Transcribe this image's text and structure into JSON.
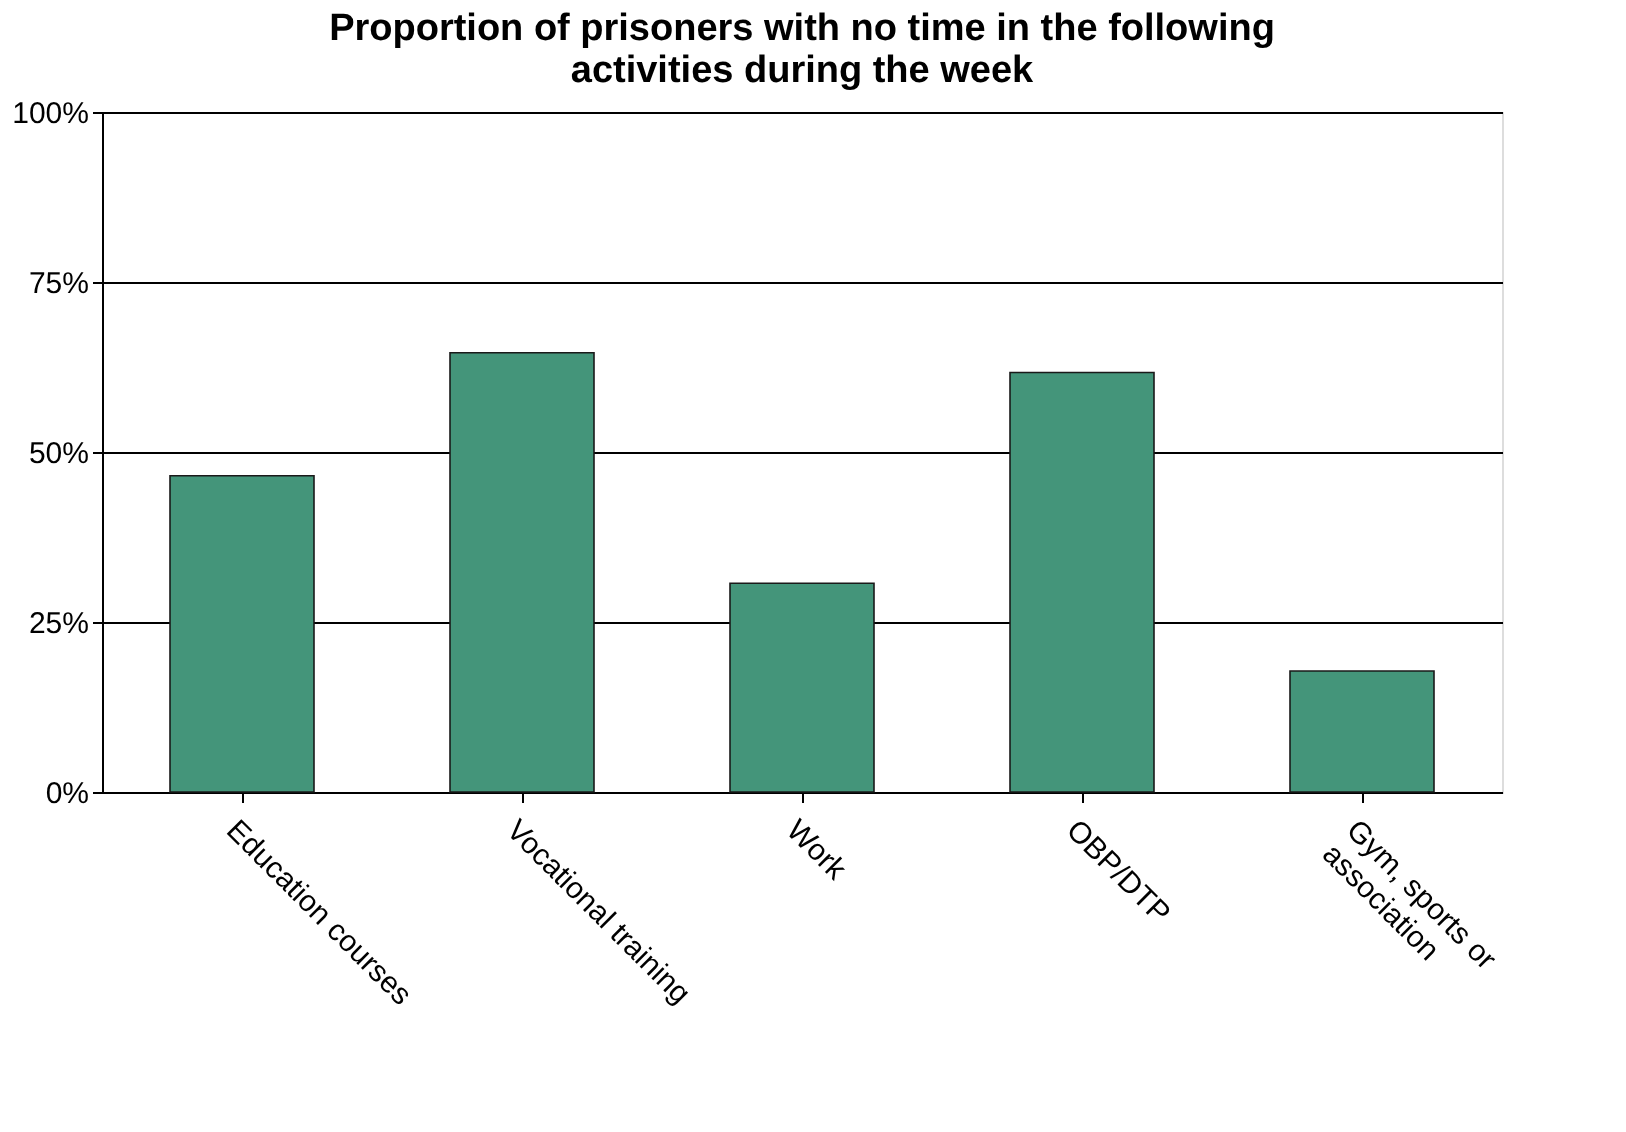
{
  "chart_data": {
    "type": "bar",
    "title": "Proportion of prisoners with no time in the following activities during the week",
    "categories": [
      "Education courses",
      "Vocational training",
      "Work",
      "OBP/DTP",
      "Gym, sports or association"
    ],
    "values": [
      46.5,
      64.6,
      30.7,
      61.7,
      17.8
    ],
    "color": "#44957a",
    "ylim": [
      0,
      100
    ],
    "yticks": [
      {
        "value": 0,
        "label": "0%"
      },
      {
        "value": 25,
        "label": "25%"
      },
      {
        "value": 50,
        "label": "50%"
      },
      {
        "value": 75,
        "label": "75%"
      },
      {
        "value": 100,
        "label": "100%"
      }
    ],
    "grid": "y"
  }
}
